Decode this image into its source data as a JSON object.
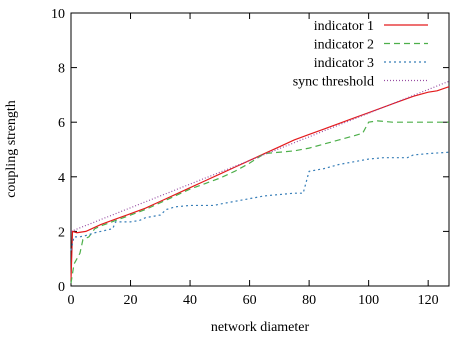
{
  "chart_data": {
    "type": "line",
    "title": "",
    "xlabel": "network diameter",
    "ylabel": "coupling strength",
    "xlim": [
      0,
      127
    ],
    "ylim": [
      0,
      10
    ],
    "xticks": [
      "0",
      "20",
      "40",
      "60",
      "80",
      "100",
      "120"
    ],
    "yticks": [
      "0",
      "2",
      "4",
      "6",
      "8",
      "10"
    ],
    "grid": false,
    "legend_position": "top-right",
    "series": [
      {
        "name": "indicator 1",
        "color": "#e41a1c",
        "dash": "solid",
        "points": [
          [
            0,
            0.2
          ],
          [
            0.5,
            2.0
          ],
          [
            2,
            1.95
          ],
          [
            5,
            2.0
          ],
          [
            8,
            2.15
          ],
          [
            10,
            2.25
          ],
          [
            15,
            2.45
          ],
          [
            20,
            2.65
          ],
          [
            25,
            2.85
          ],
          [
            30,
            3.1
          ],
          [
            35,
            3.35
          ],
          [
            40,
            3.6
          ],
          [
            45,
            3.85
          ],
          [
            50,
            4.1
          ],
          [
            55,
            4.35
          ],
          [
            60,
            4.6
          ],
          [
            65,
            4.85
          ],
          [
            70,
            5.1
          ],
          [
            75,
            5.35
          ],
          [
            80,
            5.55
          ],
          [
            85,
            5.75
          ],
          [
            90,
            5.95
          ],
          [
            95,
            6.15
          ],
          [
            100,
            6.35
          ],
          [
            105,
            6.55
          ],
          [
            110,
            6.75
          ],
          [
            115,
            6.95
          ],
          [
            120,
            7.1
          ],
          [
            123,
            7.15
          ],
          [
            127,
            7.3
          ]
        ]
      },
      {
        "name": "indicator 2",
        "color": "#4daf4a",
        "dash": "6,4",
        "points": [
          [
            0,
            0.1
          ],
          [
            1,
            0.8
          ],
          [
            3,
            1.2
          ],
          [
            4,
            1.7
          ],
          [
            6,
            1.8
          ],
          [
            8,
            2.1
          ],
          [
            10,
            2.2
          ],
          [
            15,
            2.4
          ],
          [
            20,
            2.6
          ],
          [
            25,
            2.8
          ],
          [
            30,
            3.05
          ],
          [
            35,
            3.3
          ],
          [
            40,
            3.55
          ],
          [
            45,
            3.75
          ],
          [
            50,
            3.95
          ],
          [
            55,
            4.2
          ],
          [
            60,
            4.5
          ],
          [
            65,
            4.85
          ],
          [
            70,
            4.9
          ],
          [
            75,
            4.95
          ],
          [
            80,
            5.05
          ],
          [
            85,
            5.2
          ],
          [
            90,
            5.35
          ],
          [
            95,
            5.5
          ],
          [
            98,
            5.6
          ],
          [
            100,
            6.0
          ],
          [
            103,
            6.05
          ],
          [
            108,
            6.0
          ],
          [
            115,
            6.0
          ],
          [
            120,
            6.0
          ],
          [
            127,
            6.0
          ]
        ]
      },
      {
        "name": "indicator 3",
        "color": "#377eb8",
        "dash": "2,3",
        "points": [
          [
            0,
            1.3
          ],
          [
            1,
            1.8
          ],
          [
            3,
            1.8
          ],
          [
            5,
            1.85
          ],
          [
            8,
            1.95
          ],
          [
            10,
            2.0
          ],
          [
            14,
            2.1
          ],
          [
            15,
            2.35
          ],
          [
            20,
            2.35
          ],
          [
            23,
            2.4
          ],
          [
            25,
            2.5
          ],
          [
            30,
            2.6
          ],
          [
            32,
            2.8
          ],
          [
            35,
            2.9
          ],
          [
            40,
            2.95
          ],
          [
            45,
            2.95
          ],
          [
            48,
            2.95
          ],
          [
            50,
            3.0
          ],
          [
            55,
            3.1
          ],
          [
            60,
            3.2
          ],
          [
            65,
            3.3
          ],
          [
            70,
            3.35
          ],
          [
            75,
            3.4
          ],
          [
            78,
            3.4
          ],
          [
            80,
            4.2
          ],
          [
            85,
            4.3
          ],
          [
            90,
            4.45
          ],
          [
            95,
            4.55
          ],
          [
            100,
            4.65
          ],
          [
            105,
            4.7
          ],
          [
            110,
            4.7
          ],
          [
            113,
            4.7
          ],
          [
            115,
            4.8
          ],
          [
            120,
            4.85
          ],
          [
            127,
            4.9
          ]
        ]
      },
      {
        "name": "sync threshold",
        "color": "#984ea3",
        "dash": "1,2",
        "points": [
          [
            0,
            2.0
          ],
          [
            127,
            7.5
          ]
        ]
      }
    ]
  }
}
